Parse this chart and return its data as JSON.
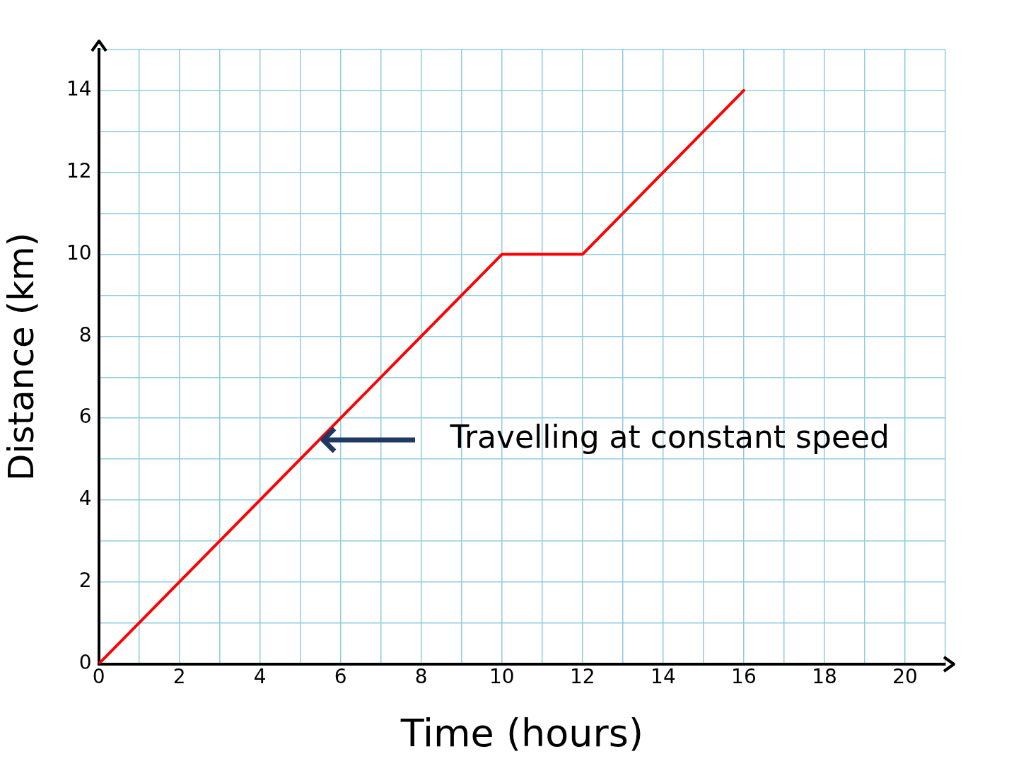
{
  "chart_data": {
    "type": "line",
    "xlabel": "Time (hours)",
    "ylabel": "Distance (km)",
    "x": [
      0,
      10,
      12,
      16
    ],
    "series": [
      {
        "color": "#ff0000",
        "values": [
          0,
          10,
          10,
          14
        ]
      }
    ],
    "xlim": [
      0,
      21
    ],
    "ylim": [
      0,
      15
    ],
    "xticks": [
      0,
      {
        "value": 1,
        "label": null
      },
      2,
      {
        "value": 3,
        "label": null
      },
      4,
      {
        "value": 5,
        "label": null
      },
      6,
      {
        "value": 7,
        "label": null
      },
      8,
      {
        "value": 9,
        "label": null
      },
      10,
      {
        "value": 11,
        "label": null
      },
      12,
      {
        "value": 13,
        "label": null
      },
      14,
      {
        "value": 15,
        "label": null
      },
      16,
      {
        "value": 17,
        "label": null
      },
      18,
      {
        "value": 19,
        "label": null
      },
      20,
      {
        "value": 21,
        "label": null
      }
    ],
    "yticks": [
      0,
      {
        "value": 1,
        "label": null
      },
      2,
      {
        "value": 3,
        "label": null
      },
      4,
      {
        "value": 5,
        "label": null
      },
      6,
      {
        "value": 7,
        "label": null
      },
      8,
      {
        "value": 9,
        "label": null
      },
      10,
      {
        "value": 11,
        "label": null
      },
      12,
      {
        "value": 13,
        "label": null
      },
      14,
      {
        "value": 15,
        "label": null
      }
    ],
    "grid": true,
    "marker": "none",
    "line_style": "solid",
    "legend": false,
    "annotations": [
      "Travelling at constant speed"
    ]
  }
}
